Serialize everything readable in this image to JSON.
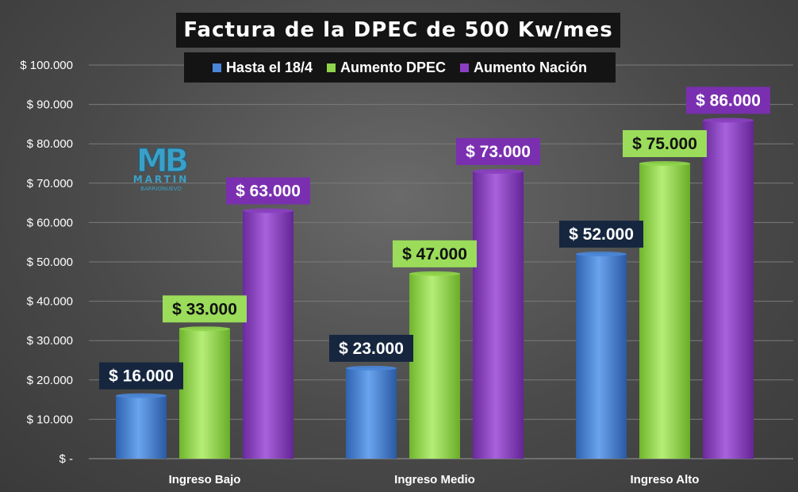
{
  "chart_data": {
    "type": "bar",
    "title": "Factura de la DPEC de 500 Kw/mes",
    "categories": [
      "Ingreso Bajo",
      "Ingreso Medio",
      "Ingreso Alto"
    ],
    "series": [
      {
        "name": "Hasta el 18/4",
        "values": [
          16000,
          23000,
          52000
        ],
        "color": "#4a86d8",
        "label_bg": "#16263f",
        "labels": [
          "$ 16.000",
          "$ 23.000",
          "$ 52.000"
        ]
      },
      {
        "name": "Aumento DPEC",
        "values": [
          33000,
          47000,
          75000
        ],
        "color": "#8fd44a",
        "label_bg": "#9bdc5a",
        "labels": [
          "$ 33.000",
          "$ 47.000",
          "$ 75.000"
        ]
      },
      {
        "name": "Aumento Nación",
        "values": [
          63000,
          73000,
          86000
        ],
        "color": "#8a3fc0",
        "label_bg": "#7a2fb0",
        "labels": [
          "$ 63.000",
          "$ 73.000",
          "$ 86.000"
        ]
      }
    ],
    "yticks": [
      0,
      10000,
      20000,
      30000,
      40000,
      50000,
      60000,
      70000,
      80000,
      90000,
      100000
    ],
    "ytick_labels": [
      "$ -",
      "$ 10.000",
      "$ 20.000",
      "$ 30.000",
      "$ 40.000",
      "$ 50.000",
      "$ 60.000",
      "$ 70.000",
      "$ 80.000",
      "$ 90.000",
      "$ 100.000"
    ],
    "ylim": [
      0,
      100000
    ],
    "grid": true,
    "legend": "top-center"
  },
  "logo": {
    "mark": "MB",
    "name_top": "MARTIN",
    "name_bottom": "BARRIONUEVO"
  }
}
